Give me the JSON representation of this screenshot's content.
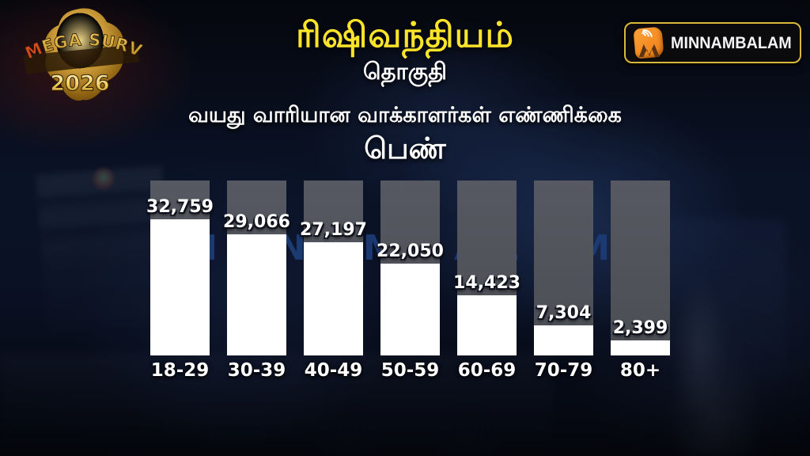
{
  "header": {
    "title": "ரிஷிவந்தியம்",
    "subtitle": "தொகுதி",
    "survey_line": "வயது வாரியான வாக்காளர்கள் எண்ணிக்கை",
    "gender_label": "பெண்"
  },
  "logos": {
    "mega_survey": {
      "line1": "MEGA SURVEY",
      "line2": "2026"
    },
    "minnambalam": {
      "text": "MINNAMBALAM",
      "icon": "minnambalam-m-icon"
    }
  },
  "watermark": "MINNAMBALAM",
  "colors": {
    "title_yellow": "#fbe42a",
    "text_white": "#ffffff",
    "bar_fill": "#ffffff",
    "bar_track": "#54565e",
    "background_navy": "#0a1226",
    "watermark_blue": "#1c3c74",
    "logo_gold": "#d8b93c",
    "logo_orange": "#ee7d12"
  },
  "chart_data": {
    "type": "bar",
    "title": "வயது வாரியான வாக்காளர்கள் எண்ணிக்கை",
    "series_name": "பெண் (female voters)",
    "categories": [
      "18-29",
      "30-39",
      "40-49",
      "50-59",
      "60-69",
      "70-79",
      "80+"
    ],
    "values": [
      32759,
      29066,
      27197,
      22050,
      14423,
      7304,
      2399
    ],
    "value_labels": [
      "32,759",
      "29,066",
      "27,197",
      "22,050",
      "14,423",
      "7,304",
      "2,399"
    ],
    "xlabel": "",
    "ylabel": "",
    "ylim": [
      0,
      42000
    ],
    "grid": false,
    "legend_position": "none",
    "bar_color": "#ffffff",
    "track_color": "#54565e"
  }
}
